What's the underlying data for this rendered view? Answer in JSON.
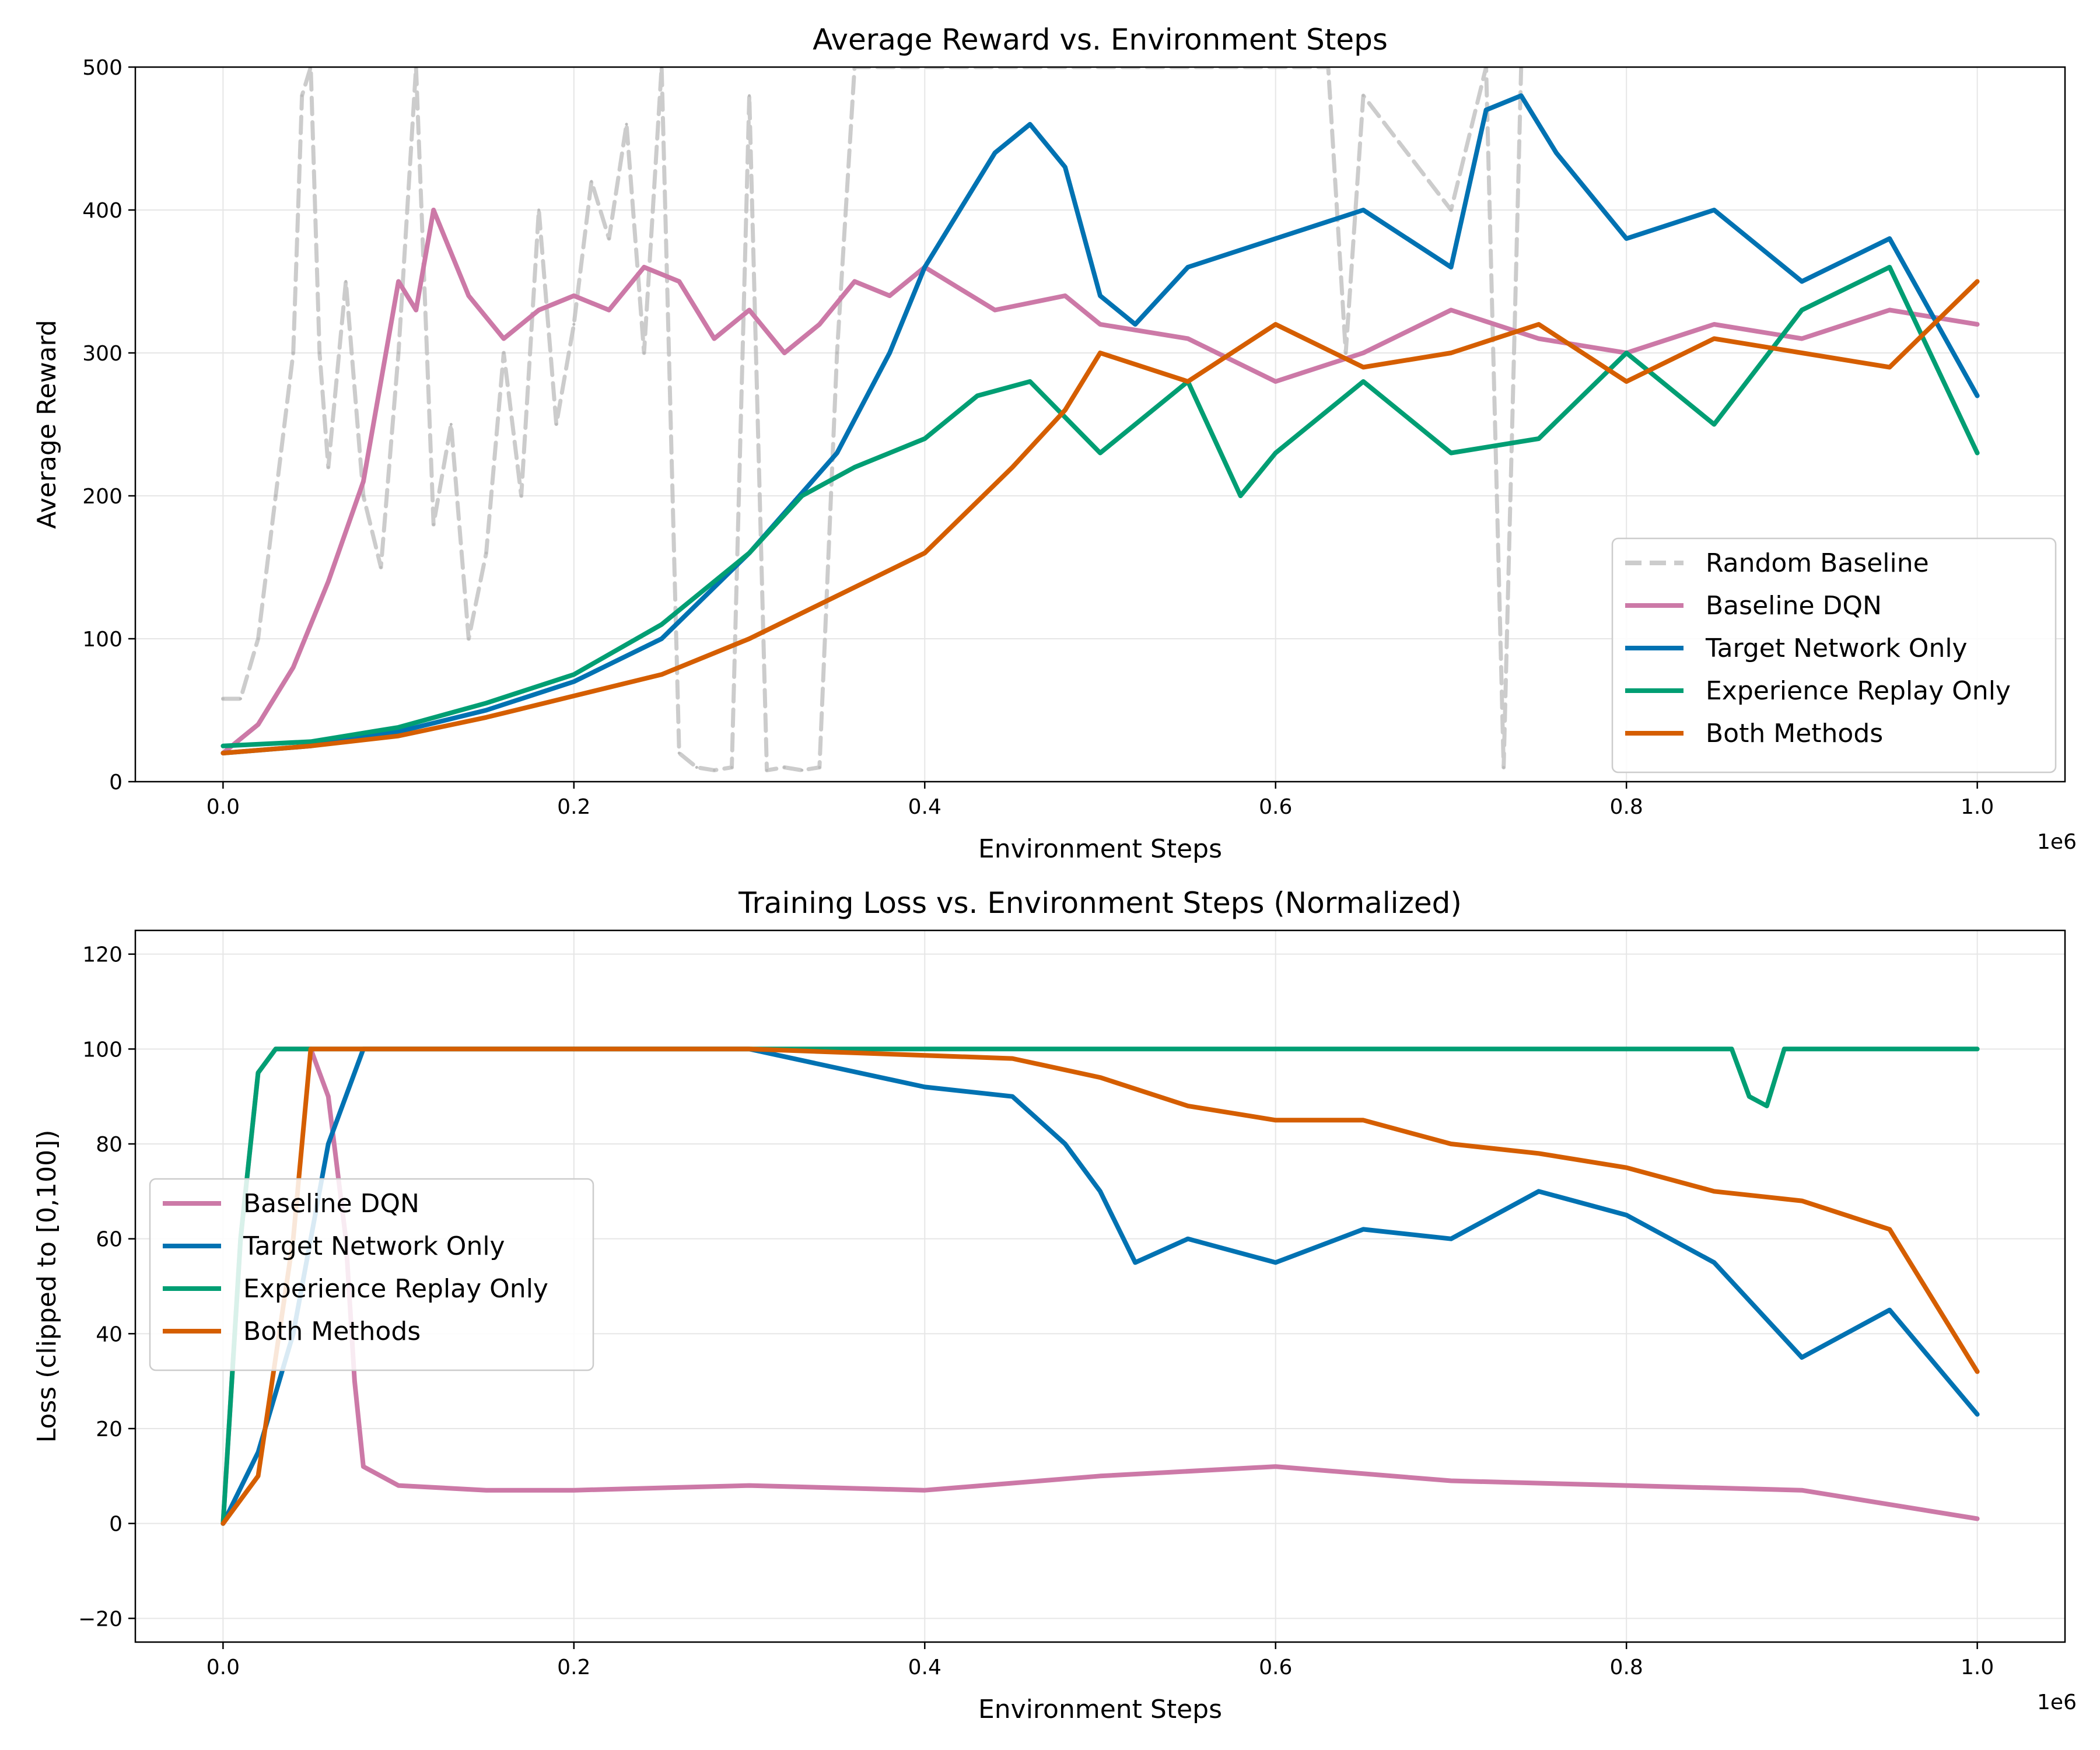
{
  "chart_data": [
    {
      "type": "line",
      "title": "Average Reward vs. Environment Steps",
      "xlabel": "Environment Steps",
      "ylabel": "Average Reward",
      "x_multiplier_label": "1e6",
      "xlim": [
        -0.05,
        1.05
      ],
      "ylim": [
        0,
        500
      ],
      "xticks": [
        0.0,
        0.2,
        0.4,
        0.6,
        0.8,
        1.0
      ],
      "xtick_labels": [
        "0.0",
        "0.2",
        "0.4",
        "0.6",
        "0.8",
        "1.0"
      ],
      "yticks": [
        0,
        100,
        200,
        300,
        400,
        500
      ],
      "ytick_labels": [
        "0",
        "100",
        "200",
        "300",
        "400",
        "500"
      ],
      "grid": true,
      "legend_position": "lower-right",
      "series": [
        {
          "name": "Random Baseline",
          "color": "#bbbbbb",
          "dashed": true,
          "x": [
            0,
            0.01,
            0.02,
            0.03,
            0.04,
            0.045,
            0.05,
            0.055,
            0.06,
            0.07,
            0.08,
            0.09,
            0.1,
            0.11,
            0.12,
            0.13,
            0.14,
            0.15,
            0.16,
            0.17,
            0.18,
            0.19,
            0.2,
            0.21,
            0.22,
            0.23,
            0.24,
            0.25,
            0.26,
            0.27,
            0.28,
            0.29,
            0.3,
            0.31,
            0.32,
            0.33,
            0.34,
            0.35,
            0.36,
            0.63,
            0.64,
            0.65,
            0.7,
            0.72,
            0.73,
            0.74
          ],
          "y": [
            58,
            58,
            100,
            200,
            300,
            480,
            500,
            300,
            220,
            350,
            200,
            150,
            300,
            500,
            180,
            250,
            100,
            160,
            300,
            200,
            400,
            250,
            320,
            420,
            380,
            460,
            300,
            500,
            20,
            10,
            8,
            10,
            480,
            8,
            10,
            8,
            10,
            300,
            500,
            500,
            300,
            480,
            400,
            500,
            10,
            500
          ]
        },
        {
          "name": "Baseline DQN",
          "color": "#cc79a7",
          "x": [
            0,
            0.02,
            0.04,
            0.06,
            0.08,
            0.09,
            0.1,
            0.11,
            0.12,
            0.14,
            0.16,
            0.18,
            0.2,
            0.22,
            0.24,
            0.26,
            0.28,
            0.3,
            0.32,
            0.34,
            0.36,
            0.38,
            0.4,
            0.44,
            0.48,
            0.5,
            0.55,
            0.6,
            0.65,
            0.7,
            0.75,
            0.8,
            0.85,
            0.9,
            0.95,
            1.0
          ],
          "y": [
            20,
            40,
            80,
            140,
            210,
            280,
            350,
            330,
            400,
            340,
            310,
            330,
            340,
            330,
            360,
            350,
            310,
            330,
            300,
            320,
            350,
            340,
            360,
            330,
            340,
            320,
            310,
            280,
            300,
            330,
            310,
            300,
            320,
            310,
            330,
            320
          ]
        },
        {
          "name": "Target Network Only",
          "color": "#0072b2",
          "x": [
            0,
            0.05,
            0.1,
            0.15,
            0.2,
            0.25,
            0.3,
            0.35,
            0.38,
            0.4,
            0.42,
            0.44,
            0.46,
            0.48,
            0.5,
            0.52,
            0.55,
            0.6,
            0.65,
            0.7,
            0.72,
            0.74,
            0.76,
            0.8,
            0.85,
            0.9,
            0.95,
            1.0
          ],
          "y": [
            20,
            25,
            35,
            50,
            70,
            100,
            160,
            230,
            300,
            360,
            400,
            440,
            460,
            430,
            340,
            320,
            360,
            380,
            400,
            360,
            470,
            480,
            440,
            380,
            400,
            350,
            380,
            270
          ]
        },
        {
          "name": "Experience Replay Only",
          "color": "#009e73",
          "x": [
            0,
            0.05,
            0.1,
            0.15,
            0.2,
            0.25,
            0.3,
            0.33,
            0.36,
            0.4,
            0.43,
            0.46,
            0.5,
            0.55,
            0.58,
            0.6,
            0.65,
            0.7,
            0.75,
            0.8,
            0.85,
            0.9,
            0.95,
            1.0
          ],
          "y": [
            25,
            28,
            38,
            55,
            75,
            110,
            160,
            200,
            220,
            240,
            270,
            280,
            230,
            280,
            200,
            230,
            280,
            230,
            240,
            300,
            250,
            330,
            360,
            230
          ]
        },
        {
          "name": "Both Methods",
          "color": "#d55e00",
          "x": [
            0,
            0.05,
            0.1,
            0.15,
            0.2,
            0.25,
            0.3,
            0.35,
            0.4,
            0.45,
            0.48,
            0.5,
            0.55,
            0.6,
            0.65,
            0.7,
            0.75,
            0.8,
            0.85,
            0.9,
            0.95,
            1.0
          ],
          "y": [
            20,
            25,
            32,
            45,
            60,
            75,
            100,
            130,
            160,
            220,
            260,
            300,
            280,
            320,
            290,
            300,
            320,
            280,
            310,
            300,
            290,
            350
          ]
        }
      ]
    },
    {
      "type": "line",
      "title": "Training Loss vs. Environment Steps (Normalized)",
      "xlabel": "Environment Steps",
      "ylabel": "Loss (clipped to [0,100])",
      "x_multiplier_label": "1e6",
      "xlim": [
        -0.05,
        1.05
      ],
      "ylim": [
        -25,
        125
      ],
      "xticks": [
        0.0,
        0.2,
        0.4,
        0.6,
        0.8,
        1.0
      ],
      "xtick_labels": [
        "0.0",
        "0.2",
        "0.4",
        "0.6",
        "0.8",
        "1.0"
      ],
      "yticks": [
        -20,
        0,
        20,
        40,
        60,
        80,
        100,
        120
      ],
      "ytick_labels": [
        "−20",
        "0",
        "20",
        "40",
        "60",
        "80",
        "100",
        "120"
      ],
      "grid": true,
      "legend_position": "center-left",
      "series": [
        {
          "name": "Baseline DQN",
          "color": "#cc79a7",
          "x": [
            0,
            0.01,
            0.02,
            0.03,
            0.05,
            0.06,
            0.07,
            0.075,
            0.08,
            0.1,
            0.15,
            0.2,
            0.3,
            0.4,
            0.5,
            0.6,
            0.7,
            0.8,
            0.9,
            1.0
          ],
          "y": [
            0,
            60,
            95,
            100,
            100,
            90,
            60,
            30,
            12,
            8,
            7,
            7,
            8,
            7,
            10,
            12,
            9,
            8,
            7,
            1
          ]
        },
        {
          "name": "Target Network Only",
          "color": "#0072b2",
          "x": [
            0,
            0.02,
            0.04,
            0.06,
            0.08,
            0.1,
            0.3,
            0.35,
            0.4,
            0.45,
            0.48,
            0.5,
            0.52,
            0.55,
            0.6,
            0.65,
            0.7,
            0.75,
            0.8,
            0.85,
            0.9,
            0.95,
            1.0
          ],
          "y": [
            0,
            15,
            40,
            80,
            100,
            100,
            100,
            96,
            92,
            90,
            80,
            70,
            55,
            60,
            55,
            62,
            60,
            70,
            65,
            55,
            35,
            45,
            23
          ]
        },
        {
          "name": "Experience Replay Only",
          "color": "#009e73",
          "x": [
            0,
            0.01,
            0.02,
            0.03,
            0.86,
            0.87,
            0.88,
            0.89,
            0.95,
            1.0
          ],
          "y": [
            0,
            60,
            95,
            100,
            100,
            90,
            88,
            100,
            100,
            100
          ]
        },
        {
          "name": "Both Methods",
          "color": "#d55e00",
          "x": [
            0,
            0.02,
            0.04,
            0.05,
            0.06,
            0.3,
            0.45,
            0.5,
            0.55,
            0.6,
            0.65,
            0.7,
            0.75,
            0.8,
            0.85,
            0.9,
            0.95,
            1.0
          ],
          "y": [
            0,
            10,
            60,
            100,
            100,
            100,
            98,
            94,
            88,
            85,
            85,
            80,
            78,
            75,
            70,
            68,
            62,
            32
          ]
        }
      ]
    }
  ]
}
